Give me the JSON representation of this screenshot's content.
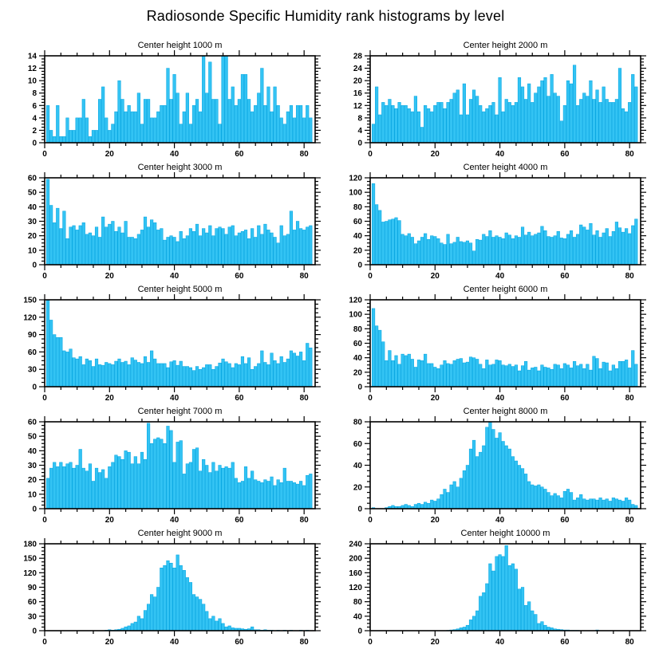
{
  "page_title": "Radiosonde Specific Humidity rank histograms by level",
  "styles": {
    "bar_fill": "#33C3F3",
    "bar_outline": "#00A3E0",
    "axis_color": "#000000"
  },
  "chart_data": [
    {
      "type": "bar",
      "title": "Center height 1000 m",
      "id": "1000m",
      "xlabel": "",
      "ylabel": "",
      "xlim": [
        0,
        83.4
      ],
      "ylim": [
        0,
        14
      ],
      "ystep": 2,
      "xticks": [
        0,
        20,
        40,
        60,
        80
      ],
      "xminor_step": 5,
      "grid": false,
      "legend": "none",
      "x_start_rank": 1,
      "values": [
        6,
        2,
        1,
        6,
        1,
        1,
        4,
        2,
        2,
        4,
        4,
        7,
        4,
        1,
        2,
        2,
        7,
        9,
        4,
        2,
        3,
        5,
        10,
        7,
        5,
        6,
        5,
        5,
        8,
        3,
        7,
        7,
        4,
        4,
        5,
        6,
        6,
        12,
        7,
        11,
        8,
        3,
        5,
        8,
        3,
        6,
        7,
        5,
        14,
        8,
        13,
        7,
        7,
        3,
        14,
        14,
        7,
        9,
        6,
        7,
        11,
        11,
        7,
        5,
        6,
        8,
        12,
        6,
        9,
        5,
        9,
        6,
        4,
        3,
        5,
        6,
        4,
        6,
        6,
        4,
        6,
        4
      ]
    },
    {
      "type": "bar",
      "title": "Center height 2000 m",
      "id": "2000m",
      "xlabel": "",
      "ylabel": "",
      "xlim": [
        0,
        83.4
      ],
      "ylim": [
        0,
        28
      ],
      "ystep": 4,
      "xticks": [
        0,
        20,
        40,
        60,
        80
      ],
      "xminor_step": 5,
      "grid": false,
      "legend": "none",
      "x_start_rank": 1,
      "values": [
        6,
        18,
        9,
        13,
        12,
        14,
        12,
        11,
        13,
        12,
        12,
        11,
        10,
        15,
        10,
        5,
        12,
        11,
        10,
        12,
        13,
        13,
        11,
        13,
        14,
        16,
        17,
        9,
        19,
        9,
        14,
        17,
        15,
        12,
        10,
        11,
        12,
        13,
        9,
        21,
        10,
        14,
        13,
        12,
        13,
        21,
        18,
        14,
        19,
        13,
        16,
        18,
        20,
        21,
        15,
        22,
        16,
        15,
        7,
        12,
        20,
        19,
        25,
        12,
        14,
        16,
        15,
        20,
        14,
        17,
        13,
        18,
        14,
        13,
        13,
        14,
        24,
        11,
        10,
        13,
        22,
        18
      ]
    },
    {
      "type": "bar",
      "title": "Center height 3000 m",
      "id": "3000m",
      "xlabel": "",
      "ylabel": "",
      "xlim": [
        0,
        83.4
      ],
      "ylim": [
        0,
        60
      ],
      "ystep": 10,
      "xticks": [
        0,
        20,
        40,
        60,
        80
      ],
      "xminor_step": 5,
      "grid": false,
      "legend": "none",
      "x_start_rank": 1,
      "values": [
        59,
        41,
        29,
        39,
        25,
        37,
        18,
        26,
        27,
        24,
        27,
        29,
        21,
        22,
        20,
        26,
        19,
        33,
        26,
        28,
        30,
        23,
        26,
        22,
        30,
        19,
        19,
        18,
        21,
        24,
        33,
        26,
        31,
        29,
        24,
        25,
        17,
        19,
        20,
        19,
        16,
        23,
        18,
        20,
        25,
        23,
        28,
        20,
        25,
        22,
        27,
        20,
        25,
        26,
        25,
        21,
        26,
        27,
        20,
        22,
        23,
        24,
        18,
        25,
        19,
        27,
        21,
        28,
        24,
        22,
        19,
        15,
        27,
        20,
        21,
        37,
        24,
        30,
        25,
        24,
        26,
        27
      ]
    },
    {
      "type": "bar",
      "title": "Center height 4000 m",
      "id": "4000m",
      "xlabel": "",
      "ylabel": "",
      "xlim": [
        0,
        83.4
      ],
      "ylim": [
        0,
        120
      ],
      "ystep": 20,
      "xticks": [
        0,
        20,
        40,
        60,
        80
      ],
      "xminor_step": 5,
      "grid": false,
      "legend": "none",
      "x_start_rank": 1,
      "values": [
        112,
        83,
        75,
        59,
        60,
        62,
        63,
        65,
        61,
        42,
        40,
        43,
        38,
        29,
        33,
        38,
        43,
        35,
        40,
        39,
        36,
        30,
        28,
        42,
        29,
        31,
        38,
        32,
        31,
        33,
        30,
        19,
        35,
        34,
        42,
        39,
        47,
        38,
        40,
        38,
        36,
        44,
        41,
        36,
        40,
        38,
        52,
        41,
        45,
        40,
        42,
        44,
        53,
        47,
        39,
        38,
        40,
        46,
        37,
        36,
        42,
        47,
        38,
        42,
        55,
        52,
        48,
        57,
        41,
        47,
        38,
        44,
        50,
        39,
        46,
        59,
        51,
        45,
        50,
        43,
        54,
        63
      ]
    },
    {
      "type": "bar",
      "title": "Center height 5000 m",
      "id": "5000m",
      "xlabel": "",
      "ylabel": "",
      "xlim": [
        0,
        83.4
      ],
      "ylim": [
        0,
        150
      ],
      "ystep": 30,
      "xticks": [
        0,
        20,
        40,
        60,
        80
      ],
      "xminor_step": 5,
      "grid": false,
      "legend": "none",
      "x_start_rank": 1,
      "values": [
        152,
        115,
        90,
        85,
        85,
        62,
        60,
        65,
        50,
        48,
        52,
        38,
        48,
        45,
        35,
        48,
        38,
        37,
        42,
        40,
        38,
        44,
        48,
        42,
        44,
        38,
        50,
        46,
        42,
        40,
        52,
        42,
        62,
        48,
        40,
        40,
        40,
        33,
        43,
        45,
        37,
        44,
        35,
        35,
        33,
        28,
        35,
        30,
        33,
        38,
        38,
        30,
        35,
        41,
        48,
        43,
        40,
        33,
        40,
        38,
        52,
        40,
        50,
        30,
        35,
        40,
        62,
        42,
        38,
        58,
        45,
        40,
        52,
        42,
        48,
        62,
        58,
        53,
        60,
        45,
        75,
        67
      ]
    },
    {
      "type": "bar",
      "title": "Center height 6000 m",
      "id": "6000m",
      "xlabel": "",
      "ylabel": "",
      "xlim": [
        0,
        83.4
      ],
      "ylim": [
        0,
        120
      ],
      "ystep": 20,
      "xticks": [
        0,
        20,
        40,
        60,
        80
      ],
      "xminor_step": 5,
      "grid": false,
      "legend": "none",
      "x_start_rank": 1,
      "values": [
        108,
        84,
        78,
        62,
        36,
        50,
        36,
        43,
        31,
        45,
        43,
        45,
        38,
        27,
        37,
        36,
        45,
        32,
        32,
        27,
        25,
        30,
        36,
        32,
        31,
        36,
        38,
        39,
        33,
        34,
        41,
        40,
        38,
        31,
        25,
        37,
        30,
        31,
        37,
        36,
        30,
        29,
        31,
        28,
        30,
        22,
        29,
        35,
        23,
        26,
        27,
        22,
        30,
        27,
        26,
        24,
        31,
        30,
        25,
        32,
        30,
        26,
        35,
        29,
        31,
        25,
        31,
        23,
        42,
        39,
        25,
        34,
        33,
        22,
        30,
        25,
        35,
        35,
        37,
        26,
        50,
        31
      ]
    },
    {
      "type": "bar",
      "title": "Center height 7000 m",
      "id": "7000m",
      "xlabel": "",
      "ylabel": "",
      "xlim": [
        0,
        83.4
      ],
      "ylim": [
        0,
        60
      ],
      "ystep": 10,
      "xticks": [
        0,
        20,
        40,
        60,
        80
      ],
      "xminor_step": 5,
      "grid": false,
      "legend": "none",
      "x_start_rank": 1,
      "values": [
        21,
        28,
        32,
        29,
        32,
        29,
        31,
        32,
        28,
        30,
        41,
        28,
        26,
        31,
        19,
        28,
        25,
        27,
        21,
        29,
        32,
        37,
        36,
        34,
        40,
        39,
        31,
        36,
        31,
        39,
        34,
        59,
        45,
        48,
        49,
        48,
        45,
        57,
        54,
        32,
        46,
        47,
        24,
        31,
        32,
        41,
        42,
        26,
        34,
        30,
        25,
        32,
        26,
        30,
        28,
        29,
        28,
        32,
        21,
        18,
        19,
        29,
        21,
        26,
        20,
        19,
        18,
        20,
        19,
        22,
        16,
        20,
        18,
        28,
        19,
        19,
        18,
        17,
        19,
        16,
        23,
        24
      ]
    },
    {
      "type": "bar",
      "title": "Center height 8000 m",
      "id": "8000m",
      "xlabel": "",
      "ylabel": "",
      "xlim": [
        0,
        83.4
      ],
      "ylim": [
        0,
        80
      ],
      "ystep": 20,
      "xticks": [
        0,
        20,
        40,
        60,
        80
      ],
      "xminor_step": 5,
      "grid": false,
      "legend": "none",
      "x_start_rank": 1,
      "values": [
        1,
        0,
        0,
        0,
        1,
        2,
        3,
        2,
        2,
        3,
        4,
        3,
        2,
        4,
        5,
        4,
        6,
        5,
        8,
        7,
        9,
        13,
        18,
        15,
        22,
        25,
        20,
        28,
        35,
        40,
        55,
        63,
        48,
        52,
        58,
        75,
        80,
        73,
        65,
        70,
        62,
        58,
        55,
        48,
        44,
        40,
        37,
        32,
        25,
        22,
        21,
        22,
        20,
        18,
        15,
        12,
        14,
        12,
        10,
        16,
        18,
        15,
        8,
        10,
        13,
        9,
        8,
        9,
        9,
        8,
        10,
        8,
        9,
        7,
        10,
        9,
        8,
        7,
        10,
        8,
        4,
        3
      ]
    },
    {
      "type": "bar",
      "title": "Center height 9000 m",
      "id": "9000m",
      "xlabel": "",
      "ylabel": "",
      "xlim": [
        0,
        83.4
      ],
      "ylim": [
        0,
        180
      ],
      "ystep": 30,
      "xticks": [
        0,
        20,
        40,
        60,
        80
      ],
      "xminor_step": 5,
      "grid": false,
      "legend": "none",
      "x_start_rank": 1,
      "values": [
        0,
        0,
        0,
        0,
        0,
        0,
        0,
        0,
        0,
        0,
        0,
        0,
        0,
        0,
        0,
        0,
        0,
        0,
        1,
        2,
        1,
        2,
        3,
        5,
        8,
        10,
        15,
        18,
        30,
        25,
        42,
        55,
        75,
        70,
        90,
        130,
        135,
        145,
        140,
        130,
        157,
        135,
        125,
        110,
        100,
        75,
        70,
        65,
        55,
        40,
        25,
        30,
        20,
        25,
        15,
        8,
        10,
        6,
        5,
        5,
        4,
        3,
        4,
        8,
        2,
        2,
        1,
        2,
        1,
        1,
        0,
        1,
        0,
        1,
        0,
        1,
        0,
        0,
        1,
        0,
        1,
        0
      ]
    },
    {
      "type": "bar",
      "title": "Center height 10000 m",
      "id": "10000m",
      "xlabel": "",
      "ylabel": "",
      "xlim": [
        0,
        83.4
      ],
      "ylim": [
        0,
        240
      ],
      "ystep": 40,
      "xticks": [
        0,
        20,
        40,
        60,
        80
      ],
      "xminor_step": 5,
      "grid": false,
      "legend": "none",
      "x_start_rank": 1,
      "values": [
        0,
        0,
        0,
        0,
        0,
        0,
        0,
        0,
        0,
        0,
        0,
        0,
        0,
        0,
        0,
        0,
        0,
        0,
        0,
        0,
        0,
        0,
        0,
        1,
        2,
        3,
        5,
        8,
        10,
        15,
        30,
        40,
        55,
        95,
        105,
        130,
        185,
        165,
        205,
        210,
        205,
        235,
        180,
        185,
        170,
        115,
        120,
        70,
        80,
        55,
        45,
        20,
        25,
        15,
        10,
        8,
        5,
        4,
        3,
        2,
        2,
        1,
        1,
        1,
        0,
        0,
        0,
        0,
        0,
        2,
        0,
        0,
        0,
        0,
        0,
        0,
        0,
        0,
        0,
        0,
        0,
        0
      ]
    }
  ]
}
